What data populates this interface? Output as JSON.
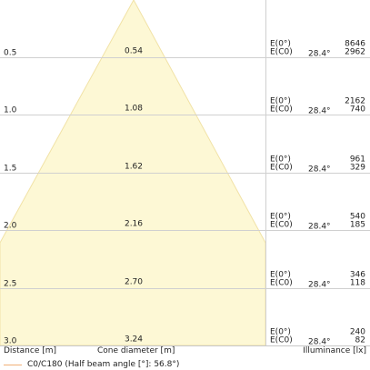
{
  "colors": {
    "cone_fill": "#fdf8d5",
    "cone_stroke": "#f1e2a6",
    "grid": "#d0d0d0",
    "legend_line": "#f0b078"
  },
  "rows": [
    {
      "distance": "0.5",
      "diameter": "0.54",
      "e0_label": "E(0°)",
      "ec0_label": "E(C0)",
      "angle": "28.4°",
      "e0": "8646",
      "ec0": "2962"
    },
    {
      "distance": "1.0",
      "diameter": "1.08",
      "e0_label": "E(0°)",
      "ec0_label": "E(C0)",
      "angle": "28.4°",
      "e0": "2162",
      "ec0": "740"
    },
    {
      "distance": "1.5",
      "diameter": "1.62",
      "e0_label": "E(0°)",
      "ec0_label": "E(C0)",
      "angle": "28.4°",
      "e0": "961",
      "ec0": "329"
    },
    {
      "distance": "2.0",
      "diameter": "2.16",
      "e0_label": "E(0°)",
      "ec0_label": "E(C0)",
      "angle": "28.4°",
      "e0": "540",
      "ec0": "185"
    },
    {
      "distance": "2.5",
      "diameter": "2.70",
      "e0_label": "E(0°)",
      "ec0_label": "E(C0)",
      "angle": "28.4°",
      "e0": "346",
      "ec0": "118"
    },
    {
      "distance": "3.0",
      "diameter": "3.24",
      "e0_label": "E(0°)",
      "ec0_label": "E(C0)",
      "angle": "28.4°",
      "e0": "240",
      "ec0": "82"
    }
  ],
  "footer": {
    "distance_label": "Distance [m]",
    "diameter_label": "Cone diameter [m]",
    "illuminance_label": "Illuminance [lx]"
  },
  "legend": {
    "label": "C0/C180 (Half beam angle [°]: 56.8°)"
  }
}
